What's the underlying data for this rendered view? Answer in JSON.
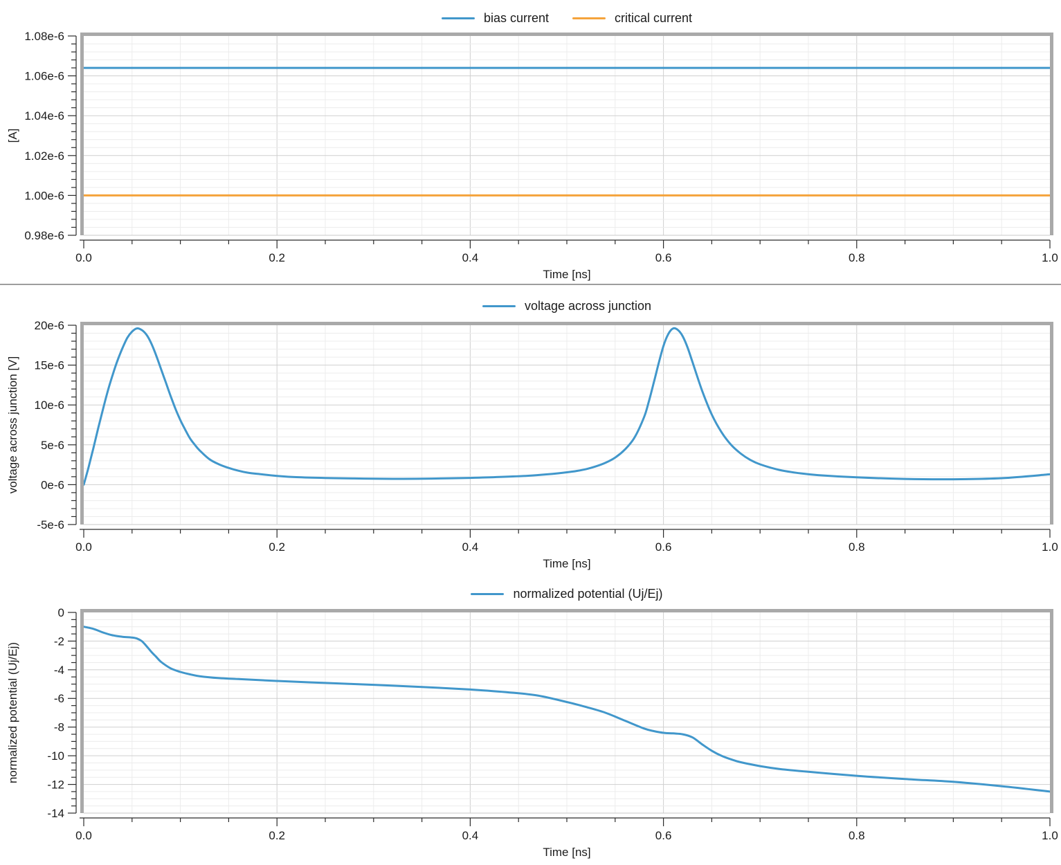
{
  "window": {
    "background": "#ffffff",
    "separator_color": "#9d9d9d",
    "frame_color": "#a9a9a9",
    "axis_color": "#2a2a2a",
    "text_color": "#1b1b1b",
    "grid_minor_color": "#ececec",
    "grid_major_color": "#cfcfcf",
    "plot_border_color": "#c9c9c9"
  },
  "chart_data": [
    {
      "type": "line",
      "x_axis": {
        "title": "Time [ns]",
        "min": 0,
        "max": 1,
        "major_step": 0.2,
        "minor_step": 0.05,
        "tick_labels": [
          "0.0",
          "0.2",
          "0.4",
          "0.6",
          "0.8",
          "1.0"
        ]
      },
      "y_axis": {
        "title": "[A]",
        "min": 0.98,
        "max": 1.08,
        "major_step": 0.02,
        "minor_step": 0.004,
        "tick_labels": [
          "0.98e-6",
          "1.00e-6",
          "1.02e-6",
          "1.04e-6",
          "1.06e-6",
          "1.08e-6"
        ]
      },
      "series": [
        {
          "name": "bias current",
          "color": "#4197CB",
          "points": [
            [
              0,
              1.064
            ],
            [
              1,
              1.064
            ]
          ]
        },
        {
          "name": "critical current",
          "color": "#F5A33B",
          "points": [
            [
              0,
              1.0
            ],
            [
              1,
              1.0
            ]
          ]
        }
      ]
    },
    {
      "type": "line",
      "x_axis": {
        "title": "Time [ns]",
        "min": 0,
        "max": 1,
        "major_step": 0.2,
        "minor_step": 0.05,
        "tick_labels": [
          "0.0",
          "0.2",
          "0.4",
          "0.6",
          "0.8",
          "1.0"
        ]
      },
      "y_axis": {
        "title": "voltage across junction [V]",
        "min": -5,
        "max": 20,
        "major_step": 5,
        "minor_step": 1,
        "tick_labels": [
          "-5e-6",
          "0e-6",
          "5e-6",
          "10e-6",
          "15e-6",
          "20e-6"
        ]
      },
      "series": [
        {
          "name": "voltage across junction",
          "color": "#4197CB",
          "points": [
            [
              0,
              0
            ],
            [
              0.005,
              2.2
            ],
            [
              0.01,
              4.6
            ],
            [
              0.015,
              7.1
            ],
            [
              0.02,
              9.5
            ],
            [
              0.025,
              11.8
            ],
            [
              0.03,
              13.8
            ],
            [
              0.035,
              15.6
            ],
            [
              0.04,
              17.1
            ],
            [
              0.045,
              18.4
            ],
            [
              0.05,
              19.2
            ],
            [
              0.055,
              19.6
            ],
            [
              0.06,
              19.4
            ],
            [
              0.065,
              18.8
            ],
            [
              0.07,
              17.7
            ],
            [
              0.075,
              16.2
            ],
            [
              0.08,
              14.5
            ],
            [
              0.085,
              12.8
            ],
            [
              0.09,
              11.1
            ],
            [
              0.095,
              9.5
            ],
            [
              0.1,
              8.1
            ],
            [
              0.105,
              6.9
            ],
            [
              0.11,
              5.8
            ],
            [
              0.115,
              5.0
            ],
            [
              0.12,
              4.3
            ],
            [
              0.13,
              3.2
            ],
            [
              0.14,
              2.55
            ],
            [
              0.15,
              2.1
            ],
            [
              0.16,
              1.75
            ],
            [
              0.17,
              1.5
            ],
            [
              0.18,
              1.35
            ],
            [
              0.2,
              1.1
            ],
            [
              0.22,
              0.95
            ],
            [
              0.25,
              0.84
            ],
            [
              0.28,
              0.78
            ],
            [
              0.3,
              0.75
            ],
            [
              0.33,
              0.73
            ],
            [
              0.36,
              0.76
            ],
            [
              0.4,
              0.85
            ],
            [
              0.43,
              0.96
            ],
            [
              0.46,
              1.12
            ],
            [
              0.48,
              1.3
            ],
            [
              0.5,
              1.55
            ],
            [
              0.51,
              1.72
            ],
            [
              0.52,
              1.95
            ],
            [
              0.53,
              2.3
            ],
            [
              0.54,
              2.75
            ],
            [
              0.55,
              3.4
            ],
            [
              0.56,
              4.4
            ],
            [
              0.57,
              5.9
            ],
            [
              0.58,
              8.5
            ],
            [
              0.585,
              10.5
            ],
            [
              0.59,
              12.8
            ],
            [
              0.595,
              15.2
            ],
            [
              0.6,
              17.4
            ],
            [
              0.605,
              18.9
            ],
            [
              0.61,
              19.6
            ],
            [
              0.615,
              19.4
            ],
            [
              0.62,
              18.6
            ],
            [
              0.625,
              17.2
            ],
            [
              0.63,
              15.4
            ],
            [
              0.64,
              11.8
            ],
            [
              0.65,
              8.8
            ],
            [
              0.66,
              6.6
            ],
            [
              0.67,
              5.0
            ],
            [
              0.68,
              3.9
            ],
            [
              0.69,
              3.1
            ],
            [
              0.7,
              2.55
            ],
            [
              0.72,
              1.85
            ],
            [
              0.74,
              1.45
            ],
            [
              0.76,
              1.2
            ],
            [
              0.8,
              0.92
            ],
            [
              0.85,
              0.72
            ],
            [
              0.9,
              0.68
            ],
            [
              0.95,
              0.82
            ],
            [
              1.0,
              1.3
            ]
          ]
        }
      ]
    },
    {
      "type": "line",
      "x_axis": {
        "title": "Time [ns]",
        "min": 0,
        "max": 1,
        "major_step": 0.2,
        "minor_step": 0.05,
        "tick_labels": [
          "0.0",
          "0.2",
          "0.4",
          "0.6",
          "0.8",
          "1.0"
        ]
      },
      "y_axis": {
        "title": "normalized potential  (Uj/Ej)",
        "min": -14,
        "max": 0,
        "major_step": 2,
        "minor_step": 0.5,
        "tick_labels": [
          "-14",
          "-12",
          "-10",
          "-8",
          "-6",
          "-4",
          "-2",
          "0"
        ]
      },
      "series": [
        {
          "name": "normalized potential (Uj/Ej)",
          "color": "#4197CB",
          "points": [
            [
              0,
              -1.0
            ],
            [
              0.01,
              -1.15
            ],
            [
              0.02,
              -1.4
            ],
            [
              0.03,
              -1.6
            ],
            [
              0.04,
              -1.7
            ],
            [
              0.05,
              -1.75
            ],
            [
              0.055,
              -1.82
            ],
            [
              0.06,
              -2.0
            ],
            [
              0.065,
              -2.35
            ],
            [
              0.07,
              -2.75
            ],
            [
              0.075,
              -3.1
            ],
            [
              0.08,
              -3.45
            ],
            [
              0.09,
              -3.9
            ],
            [
              0.1,
              -4.15
            ],
            [
              0.11,
              -4.32
            ],
            [
              0.12,
              -4.45
            ],
            [
              0.14,
              -4.58
            ],
            [
              0.16,
              -4.65
            ],
            [
              0.2,
              -4.78
            ],
            [
              0.25,
              -4.92
            ],
            [
              0.3,
              -5.05
            ],
            [
              0.35,
              -5.2
            ],
            [
              0.4,
              -5.38
            ],
            [
              0.44,
              -5.58
            ],
            [
              0.47,
              -5.8
            ],
            [
              0.5,
              -6.25
            ],
            [
              0.52,
              -6.6
            ],
            [
              0.54,
              -7.0
            ],
            [
              0.56,
              -7.55
            ],
            [
              0.58,
              -8.1
            ],
            [
              0.59,
              -8.28
            ],
            [
              0.6,
              -8.4
            ],
            [
              0.61,
              -8.44
            ],
            [
              0.62,
              -8.5
            ],
            [
              0.63,
              -8.72
            ],
            [
              0.64,
              -9.2
            ],
            [
              0.65,
              -9.65
            ],
            [
              0.66,
              -10.0
            ],
            [
              0.67,
              -10.25
            ],
            [
              0.68,
              -10.45
            ],
            [
              0.7,
              -10.72
            ],
            [
              0.72,
              -10.92
            ],
            [
              0.75,
              -11.12
            ],
            [
              0.8,
              -11.4
            ],
            [
              0.85,
              -11.62
            ],
            [
              0.9,
              -11.82
            ],
            [
              0.95,
              -12.12
            ],
            [
              1.0,
              -12.5
            ]
          ]
        }
      ]
    }
  ]
}
